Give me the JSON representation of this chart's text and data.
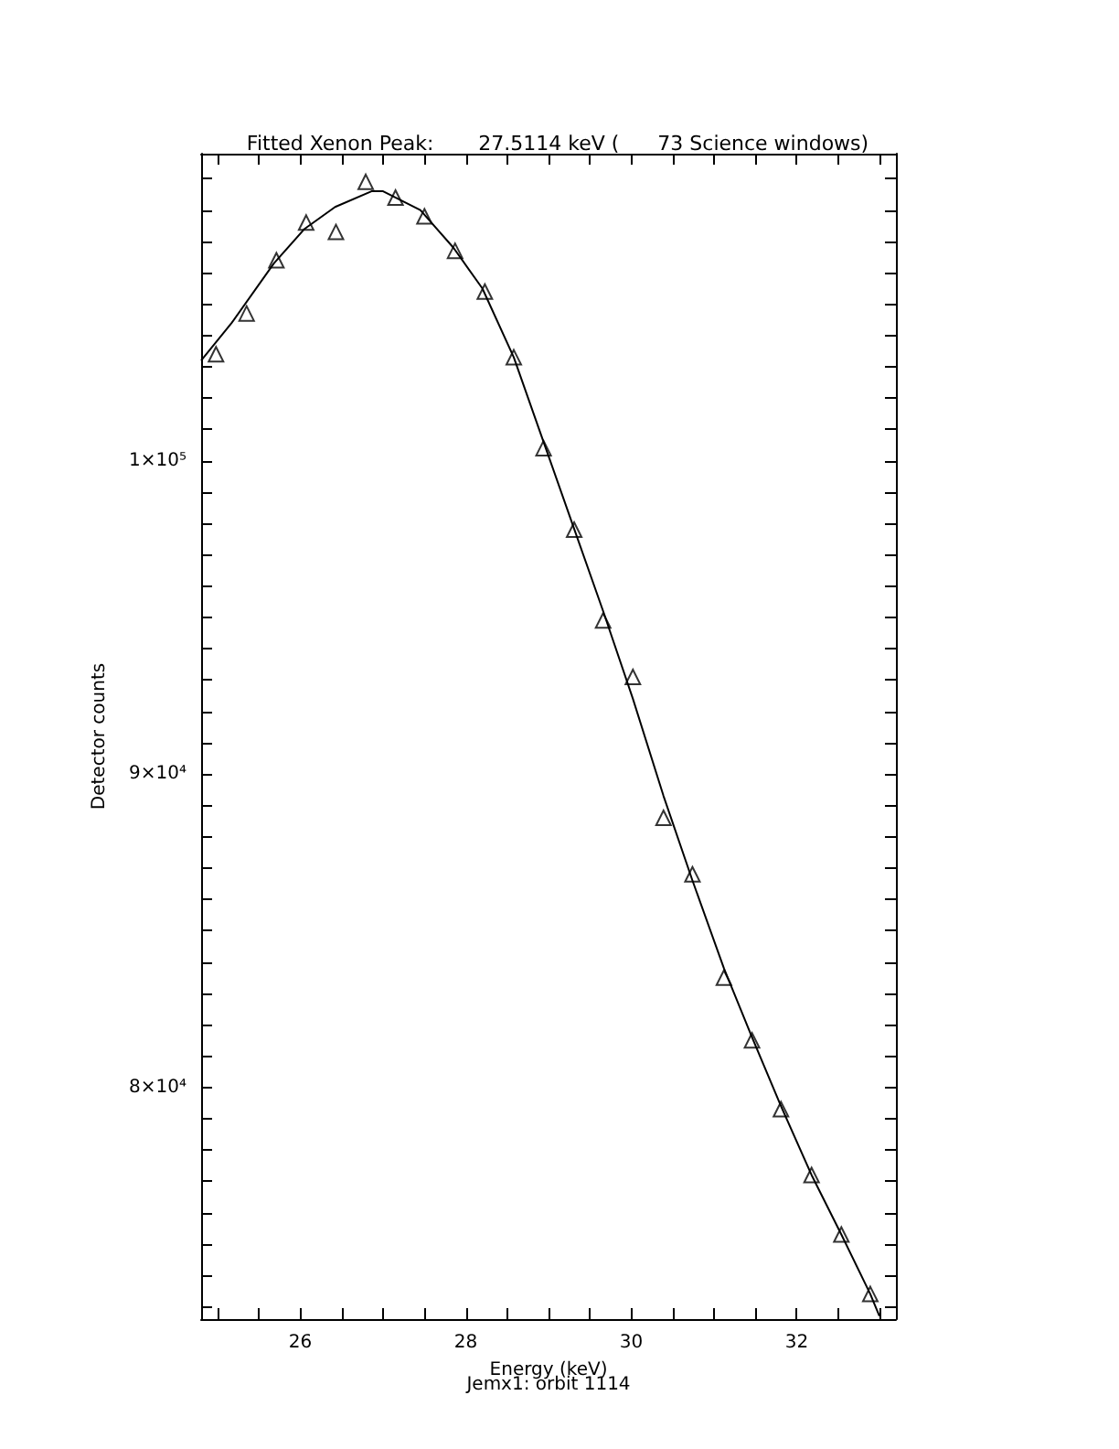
{
  "chart_data": {
    "type": "scatter",
    "title": "Fitted Xenon Peak:       27.5114 keV (      73 Science windows)",
    "xlabel": "Energy (keV)",
    "ylabel": "Detector counts",
    "annotations": [
      "Jemx1: orbit 1114"
    ],
    "xlim": [
      24.8,
      33.2
    ],
    "ylim": [
      72600,
      109800
    ],
    "xticks": [
      {
        "value": 25,
        "label": null
      },
      {
        "value": 25.5,
        "label": null
      },
      26,
      {
        "value": 26.5,
        "label": null
      },
      {
        "value": 27,
        "label": null
      },
      {
        "value": 27.5,
        "label": null
      },
      28,
      {
        "value": 28.5,
        "label": null
      },
      {
        "value": 29,
        "label": null
      },
      {
        "value": 29.5,
        "label": null
      },
      30,
      {
        "value": 30.5,
        "label": null
      },
      {
        "value": 31,
        "label": null
      },
      {
        "value": 31.5,
        "label": null
      },
      32,
      {
        "value": 32.5,
        "label": null
      },
      {
        "value": 33,
        "label": null
      }
    ],
    "yticks": [
      {
        "value": 73000,
        "label": null
      },
      {
        "value": 74000,
        "label": null
      },
      {
        "value": 75000,
        "label": null
      },
      {
        "value": 76000,
        "label": null
      },
      {
        "value": 77000,
        "label": null
      },
      {
        "value": 78000,
        "label": null
      },
      {
        "value": 79000,
        "label": null
      },
      {
        "value": 80000,
        "label": "8×10⁴"
      },
      {
        "value": 81000,
        "label": null
      },
      {
        "value": 82000,
        "label": null
      },
      {
        "value": 83000,
        "label": null
      },
      {
        "value": 84000,
        "label": null
      },
      {
        "value": 85000,
        "label": null
      },
      {
        "value": 86000,
        "label": null
      },
      {
        "value": 87000,
        "label": null
      },
      {
        "value": 88000,
        "label": null
      },
      {
        "value": 89000,
        "label": null
      },
      {
        "value": 90000,
        "label": "9×10⁴"
      },
      {
        "value": 91000,
        "label": null
      },
      {
        "value": 92000,
        "label": null
      },
      {
        "value": 93000,
        "label": null
      },
      {
        "value": 94000,
        "label": null
      },
      {
        "value": 95000,
        "label": null
      },
      {
        "value": 96000,
        "label": null
      },
      {
        "value": 97000,
        "label": null
      },
      {
        "value": 98000,
        "label": null
      },
      {
        "value": 99000,
        "label": null
      },
      {
        "value": 100000,
        "label": "1×10⁵"
      },
      {
        "value": 101000,
        "label": null
      },
      {
        "value": 102000,
        "label": null
      },
      {
        "value": 103000,
        "label": null
      },
      {
        "value": 104000,
        "label": null
      },
      {
        "value": 105000,
        "label": null
      },
      {
        "value": 106000,
        "label": null
      },
      {
        "value": 107000,
        "label": null
      },
      {
        "value": 108000,
        "label": null
      },
      {
        "value": 109000,
        "label": null
      }
    ],
    "grid": false,
    "series": [
      {
        "marker": "triangle",
        "color": "#000000",
        "x": [
          24.98,
          25.35,
          25.71,
          26.07,
          26.43,
          26.79,
          27.15,
          27.5,
          27.87,
          28.23,
          28.58,
          28.94,
          29.31,
          29.66,
          30.02,
          30.39,
          30.74,
          31.12,
          31.46,
          31.81,
          32.18,
          32.54,
          32.89
        ],
        "values": [
          103400,
          104700,
          106400,
          107600,
          107300,
          108900,
          108400,
          107800,
          106700,
          105400,
          103300,
          100400,
          97800,
          94900,
          93100,
          88600,
          86800,
          83500,
          81500,
          79300,
          77200,
          75300,
          73400
        ]
      },
      {
        "type": "line",
        "marker": "none",
        "line_style": "solid",
        "color": "#000000",
        "x": [
          24.8,
          25.17,
          25.68,
          26.05,
          26.42,
          26.86,
          27.0,
          27.45,
          27.85,
          28.2,
          28.58,
          28.94,
          29.3,
          29.66,
          30.02,
          30.39,
          30.74,
          31.12,
          31.46,
          31.81,
          32.18,
          32.54,
          32.89,
          33.0
        ],
        "values": [
          103200,
          104400,
          106300,
          107400,
          108100,
          108600,
          108600,
          108000,
          106800,
          105500,
          103300,
          100600,
          97900,
          95200,
          92400,
          89300,
          86600,
          83800,
          81600,
          79400,
          77200,
          75300,
          73400,
          72700
        ]
      }
    ]
  }
}
